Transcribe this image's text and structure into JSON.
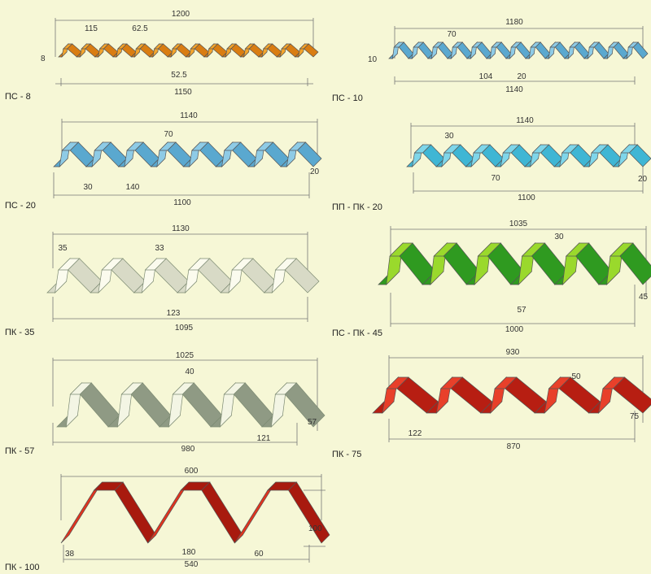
{
  "profiles": [
    {
      "id": "ps8",
      "label": "ПС - 8",
      "color": "#f3a42c",
      "dark": "#d97d12",
      "top_dim": "1200",
      "dims": [
        "115",
        "62.5",
        "8",
        "52.5"
      ],
      "bottom_dim": "1150"
    },
    {
      "id": "ps10",
      "label": "ПС - 10",
      "color": "#8ecbe6",
      "dark": "#5aa8cf",
      "top_dim": "1180",
      "dims": [
        "70",
        "10",
        "104",
        "20"
      ],
      "bottom_dim": "1140"
    },
    {
      "id": "ps20",
      "label": "ПС - 20",
      "color": "#8ecbe6",
      "dark": "#5aa8cf",
      "top_dim": "1140",
      "dims": [
        "70",
        "30",
        "140",
        "20"
      ],
      "bottom_dim": "1100"
    },
    {
      "id": "ppk20",
      "label": "ПП - ПК - 20",
      "color": "#7fd6ea",
      "dark": "#3fb6d4",
      "top_dim": "1140",
      "dims": [
        "30",
        "70",
        "20"
      ],
      "bottom_dim": "1100"
    },
    {
      "id": "pk35",
      "label": "ПК - 35",
      "color": "#fbfbee",
      "dark": "#d8dac6",
      "top_dim": "1130",
      "dims": [
        "35",
        "33",
        "123"
      ],
      "bottom_dim": "1095"
    },
    {
      "id": "pspk45",
      "label": "ПС - ПК - 45",
      "color": "#9ad92c",
      "dark": "#2f9a20",
      "top_dim": "1035",
      "dims": [
        "30",
        "57",
        "45"
      ],
      "bottom_dim": "1000"
    },
    {
      "id": "pk57",
      "label": "ПК - 57",
      "color": "#f3f5e4",
      "dark": "#8f9a84",
      "top_dim": "1025",
      "dims": [
        "40",
        "121",
        "57"
      ],
      "bottom_dim": "980"
    },
    {
      "id": "pk75",
      "label": "ПК - 75",
      "color": "#e8402a",
      "dark": "#b71e12",
      "top_dim": "930",
      "dims": [
        "50",
        "122",
        "75"
      ],
      "bottom_dim": "870"
    },
    {
      "id": "pk100",
      "label": "ПК - 100",
      "color": "#e0331e",
      "dark": "#a81a0e",
      "top_dim": "600",
      "dims": [
        "38",
        "180",
        "60",
        "100"
      ],
      "bottom_dim": "540"
    }
  ]
}
